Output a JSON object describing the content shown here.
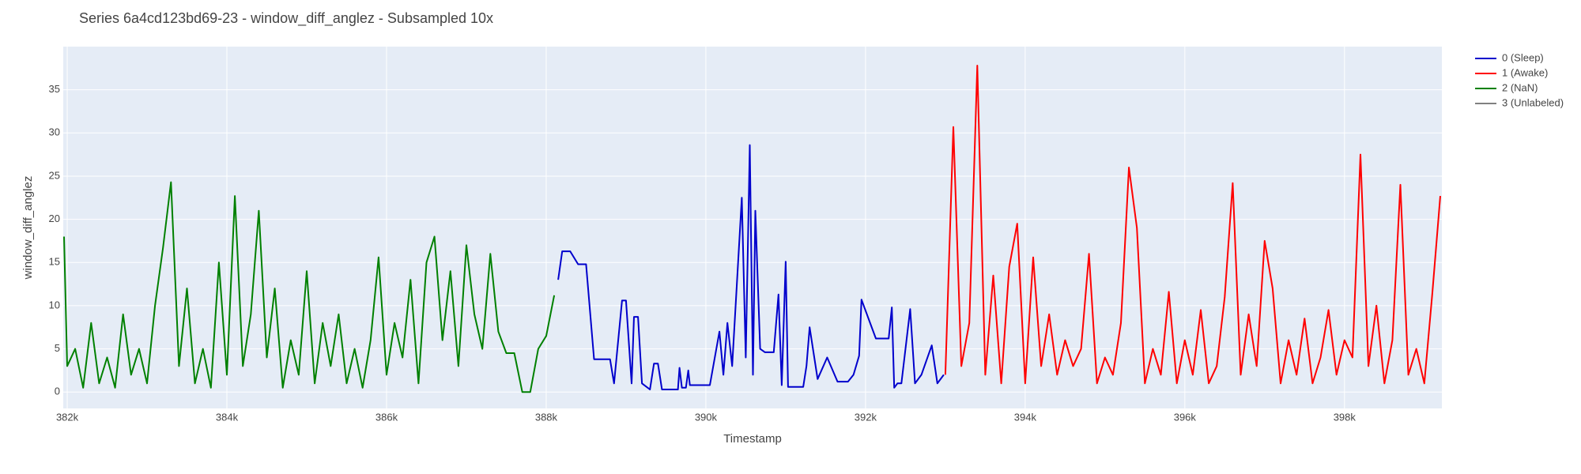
{
  "chart_data": {
    "type": "line",
    "title": "Series 6a4cd123bd69-23 - window_diff_anglez - Subsampled 10x",
    "x_label": "Timestamp",
    "y_label": "window_diff_anglez",
    "xlim": [
      381950,
      399220
    ],
    "ylim": [
      -1.9,
      40
    ],
    "xticks": [
      {
        "value": 382000,
        "label": "382k"
      },
      {
        "value": 384000,
        "label": "384k"
      },
      {
        "value": 386000,
        "label": "386k"
      },
      {
        "value": 388000,
        "label": "388k"
      },
      {
        "value": 390000,
        "label": "390k"
      },
      {
        "value": 392000,
        "label": "392k"
      },
      {
        "value": 394000,
        "label": "394k"
      },
      {
        "value": 396000,
        "label": "396k"
      },
      {
        "value": 398000,
        "label": "398k"
      }
    ],
    "yticks": [
      0,
      5,
      10,
      15,
      20,
      25,
      30,
      35
    ],
    "grid": true,
    "legend": "outside-right",
    "series": [
      {
        "name": "0 (Sleep)",
        "color": "#0000cc",
        "x": [
          388150,
          388200,
          388300,
          388400,
          388500,
          388600,
          388700,
          388800,
          388850,
          388950,
          389000,
          389070,
          389100,
          389150,
          389200,
          389300,
          389350,
          389400,
          389450,
          389650,
          389670,
          389700,
          389750,
          389780,
          389800,
          390050,
          390170,
          390220,
          390270,
          390330,
          390450,
          390500,
          390550,
          390590,
          390620,
          390680,
          390740,
          390850,
          390910,
          390950,
          391000,
          391030,
          391220,
          391260,
          391300,
          391400,
          391520,
          391650,
          391780,
          391850,
          391920,
          391950,
          392130,
          392290,
          392330,
          392360,
          392400,
          392450,
          392560,
          392620,
          392700,
          392830,
          392900,
          392980
        ],
        "values": [
          13,
          16.3,
          16.3,
          14.8,
          14.8,
          3.8,
          3.8,
          3.8,
          1,
          10.6,
          10.6,
          1,
          8.7,
          8.7,
          1,
          0.3,
          3.3,
          3.3,
          0.3,
          0.3,
          2.8,
          0.5,
          0.5,
          2.5,
          0.8,
          0.8,
          7,
          2,
          8,
          3,
          22.5,
          4,
          28.6,
          2,
          21,
          5,
          4.6,
          4.6,
          11.3,
          0.8,
          15.1,
          0.6,
          0.6,
          3,
          7.5,
          1.5,
          4,
          1.2,
          1.2,
          2,
          4.2,
          10.7,
          6.2,
          6.2,
          9.8,
          0.5,
          1,
          1,
          9.6,
          1,
          2,
          5.4,
          1,
          2
        ]
      },
      {
        "name": "1 (Awake)",
        "color": "#ff0000",
        "x": [
          393000,
          393100,
          393200,
          393300,
          393400,
          393500,
          393600,
          393700,
          393800,
          393900,
          394000,
          394100,
          394200,
          394300,
          394400,
          394500,
          394600,
          394700,
          394800,
          394900,
          395000,
          395100,
          395200,
          395300,
          395400,
          395500,
          395600,
          395700,
          395800,
          395900,
          396000,
          396100,
          396200,
          396300,
          396400,
          396500,
          396600,
          396700,
          396800,
          396900,
          397000,
          397100,
          397200,
          397300,
          397400,
          397500,
          397600,
          397700,
          397800,
          397900,
          398000,
          398100,
          398200,
          398300,
          398400,
          398500,
          398600,
          398700,
          398800,
          398900,
          399000,
          399100,
          399200
        ],
        "values": [
          2,
          30.7,
          3,
          8,
          37.8,
          2,
          13.5,
          1,
          14.5,
          19.5,
          1,
          15.6,
          3,
          9,
          2,
          6,
          3,
          5,
          16,
          1,
          4,
          2,
          8,
          26,
          19,
          1,
          5,
          2,
          11.6,
          1,
          6,
          2,
          9.5,
          1,
          3,
          11,
          24.2,
          2,
          9,
          3,
          17.5,
          12,
          1,
          6,
          2,
          8.5,
          1,
          4,
          9.5,
          2,
          6,
          4,
          27.5,
          3,
          10,
          1,
          6,
          24,
          2,
          5,
          1,
          11.4,
          22.7
        ]
      },
      {
        "name": "2 (NaN)",
        "color": "#008000",
        "x": [
          381960,
          382000,
          382100,
          382200,
          382300,
          382400,
          382500,
          382600,
          382700,
          382800,
          382900,
          383000,
          383100,
          383200,
          383300,
          383400,
          383500,
          383600,
          383700,
          383800,
          383900,
          384000,
          384100,
          384200,
          384300,
          384400,
          384500,
          384600,
          384700,
          384800,
          384900,
          385000,
          385100,
          385200,
          385300,
          385400,
          385500,
          385600,
          385700,
          385800,
          385900,
          386000,
          386100,
          386200,
          386300,
          386400,
          386500,
          386600,
          386700,
          386800,
          386900,
          387000,
          387100,
          387200,
          387300,
          387400,
          387500,
          387600,
          387700,
          387800,
          387900,
          388000,
          388100
        ],
        "values": [
          18,
          3,
          5,
          0.5,
          8,
          1,
          4,
          0.5,
          9,
          2,
          5,
          1,
          10,
          16.7,
          24.3,
          3,
          12,
          1,
          5,
          0.5,
          15,
          2,
          22.7,
          3,
          9,
          21,
          4,
          12,
          0.5,
          6,
          2,
          14,
          1,
          8,
          3,
          9,
          1,
          5,
          0.5,
          6,
          15.6,
          2,
          8,
          4,
          13,
          1,
          15,
          18,
          6,
          14,
          3,
          17,
          9,
          5,
          16,
          7,
          4.5,
          4.5,
          0,
          0,
          5,
          6.5,
          11.2
        ]
      },
      {
        "name": "3 (Unlabeled)",
        "color": "#808080",
        "x": [],
        "values": []
      }
    ]
  }
}
